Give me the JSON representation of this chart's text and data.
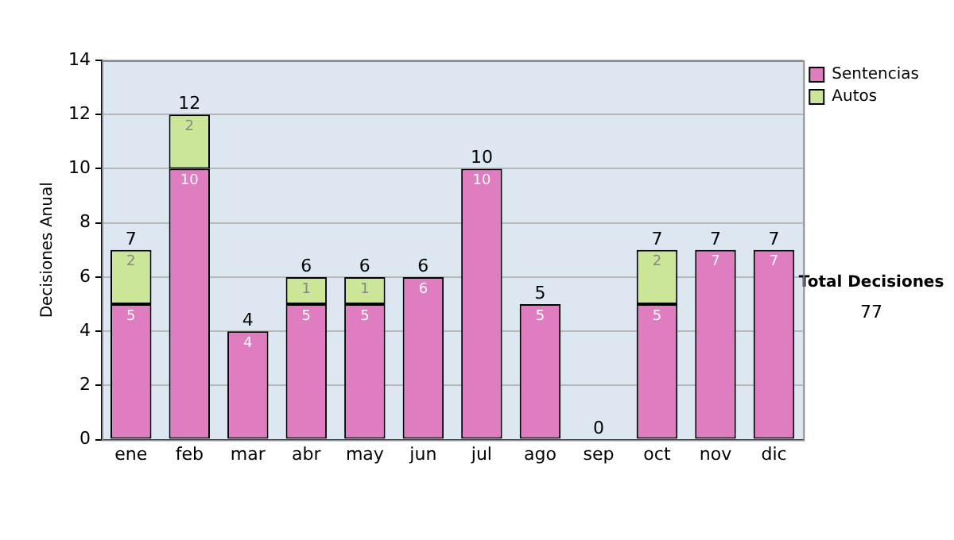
{
  "chart_data": {
    "type": "bar",
    "stacked": true,
    "ylabel": "Decisiones Anual",
    "categories": [
      "ene",
      "feb",
      "mar",
      "abr",
      "may",
      "jun",
      "jul",
      "ago",
      "sep",
      "oct",
      "nov",
      "dic"
    ],
    "series": [
      {
        "name": "Sentencias",
        "color": "#e07cc0",
        "values": [
          5,
          10,
          4,
          5,
          5,
          6,
          10,
          5,
          0,
          5,
          7,
          7
        ],
        "value_labels": [
          "5",
          "10",
          "4",
          "5",
          "5",
          "6",
          "10",
          "5",
          null,
          "5",
          "7",
          "7"
        ]
      },
      {
        "name": "Autos",
        "color": "#cce698",
        "values": [
          2,
          2,
          0,
          1,
          1,
          0,
          0,
          0,
          0,
          2,
          0,
          0
        ],
        "value_labels": [
          "2",
          "2",
          null,
          "1",
          "1",
          null,
          null,
          null,
          null,
          "2",
          null,
          null
        ]
      }
    ],
    "totals": [
      "7",
      "12",
      "4",
      "6",
      "6",
      "6",
      "10",
      "5",
      "0",
      "7",
      "7",
      "7"
    ],
    "ylim": [
      0,
      14
    ],
    "yticks": [
      0,
      2,
      4,
      6,
      8,
      10,
      12,
      14
    ],
    "grid": "y",
    "legend": "right",
    "annotations": [
      "Total Decisiones",
      "77"
    ]
  }
}
